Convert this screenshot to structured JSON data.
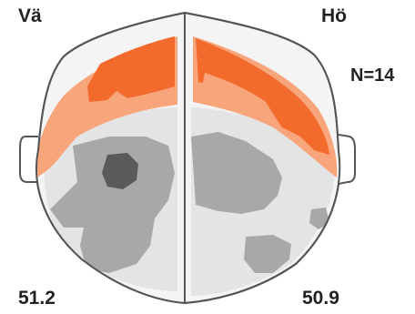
{
  "labels": {
    "left_hemisphere": "Vä",
    "right_hemisphere": "Hö",
    "sample_size": "N=14"
  },
  "values": {
    "left": "51.2",
    "right": "50.9"
  },
  "colors": {
    "outline": "#555555",
    "light_orange": "#f9a57c",
    "dark_orange": "#f26b2d",
    "pale_gray": "#e4e4e4",
    "mid_gray": "#a8a8a8",
    "dark_gray": "#5a5a5a"
  }
}
